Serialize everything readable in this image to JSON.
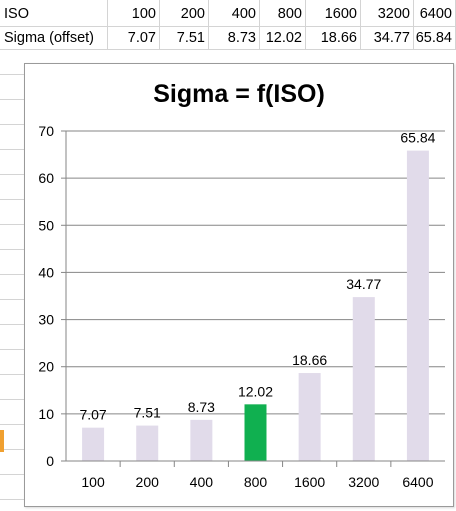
{
  "sheet": {
    "row1_label": "ISO",
    "row2_label": "Sigma (offset)",
    "iso_values": [
      "100",
      "200",
      "400",
      "800",
      "1600",
      "3200",
      "6400"
    ],
    "sigma_values": [
      "7.07",
      "7.51",
      "8.73",
      "12.02",
      "18.66",
      "34.77",
      "65.84"
    ]
  },
  "chart_data": {
    "type": "bar",
    "title": "Sigma = f(ISO)",
    "categories": [
      "100",
      "200",
      "400",
      "800",
      "1600",
      "3200",
      "6400"
    ],
    "values": [
      7.07,
      7.51,
      8.73,
      12.02,
      18.66,
      34.77,
      65.84
    ],
    "data_labels": [
      "7.07",
      "7.51",
      "8.73",
      "12.02",
      "18.66",
      "34.77",
      "65.84"
    ],
    "ylim": [
      0,
      70
    ],
    "yticks": [
      0,
      10,
      20,
      30,
      40,
      50,
      60,
      70
    ],
    "grid": true,
    "legend": "none",
    "highlight_category": "800",
    "colors": {
      "bar": "#e1dbea",
      "highlight": "#10b050",
      "grid": "#868686",
      "axis": "#868686"
    }
  }
}
